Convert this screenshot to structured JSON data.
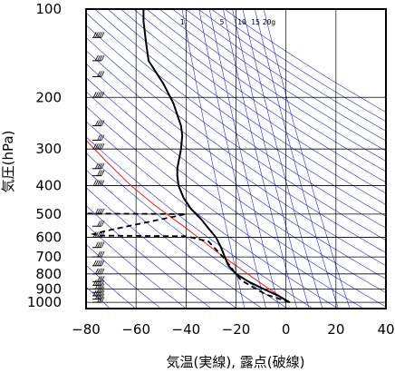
{
  "chart_data": {
    "type": "line",
    "subtype": "emagram",
    "xlabel": "気温(実線), 露点(破線)",
    "ylabel": "気圧(hPa)",
    "xlim": [
      -80,
      40
    ],
    "ylim": [
      1050,
      100
    ],
    "y_scale": "log",
    "x_ticks": [
      -80,
      -60,
      -40,
      -20,
      0,
      20,
      40
    ],
    "x_tick_labels": [
      "−80",
      "−60",
      "−40",
      "−20",
      "0",
      "20",
      "40"
    ],
    "y_ticks": [
      100,
      200,
      300,
      400,
      500,
      600,
      700,
      800,
      900,
      1000
    ],
    "y_tick_labels": [
      "100",
      "200",
      "300",
      "400",
      "500",
      "600",
      "700",
      "800",
      "900",
      "1000"
    ],
    "grid": true,
    "mixing_ratio_labels": [
      "1",
      "5",
      "10",
      "15",
      "20g"
    ],
    "series": [
      {
        "style": "solid",
        "color": "#000000",
        "points": [
          [
            1.5,
            1000
          ],
          [
            -3,
            950
          ],
          [
            -9,
            900
          ],
          [
            -15,
            850
          ],
          [
            -20,
            800
          ],
          [
            -23,
            750
          ],
          [
            -24.5,
            700
          ],
          [
            -26,
            650
          ],
          [
            -28,
            600
          ],
          [
            -31,
            560
          ],
          [
            -34,
            520
          ],
          [
            -38,
            480
          ],
          [
            -41,
            440
          ],
          [
            -43,
            400
          ],
          [
            -43.5,
            370
          ],
          [
            -43.5,
            350
          ],
          [
            -42,
            300
          ],
          [
            -41.5,
            270
          ],
          [
            -42,
            250
          ],
          [
            -45,
            210
          ],
          [
            -49,
            180
          ],
          [
            -55,
            150
          ],
          [
            -56,
            130
          ],
          [
            -57,
            110
          ],
          [
            -57,
            100
          ]
        ]
      },
      {
        "style": "dashed",
        "color": "#000000",
        "points": [
          [
            1.5,
            1000
          ],
          [
            -3,
            970
          ],
          [
            -8,
            940
          ],
          [
            -12,
            900
          ],
          [
            -15,
            870
          ],
          [
            -18,
            840
          ],
          [
            -20,
            800
          ],
          [
            -24,
            720
          ],
          [
            -28,
            660
          ],
          [
            -31,
            620
          ],
          [
            -40,
            595
          ],
          [
            -75,
            592
          ],
          [
            -77,
            585
          ],
          [
            -72,
            570
          ],
          [
            -40,
            500
          ],
          [
            -80,
            498
          ]
        ]
      }
    ],
    "parcel_curve": {
      "color": "#e8201a",
      "points": [
        [
          1.5,
          1000
        ],
        [
          -5,
          920
        ],
        [
          -11,
          850
        ],
        [
          -18,
          770
        ],
        [
          -25,
          700
        ],
        [
          -33,
          620
        ],
        [
          -41,
          550
        ],
        [
          -52,
          470
        ],
        [
          -62,
          400
        ],
        [
          -72,
          330
        ],
        [
          -80,
          280
        ]
      ]
    },
    "wind_barb_levels": [
      1000,
      975,
      950,
      925,
      900,
      875,
      850,
      800,
      750,
      700,
      650,
      600,
      550,
      500,
      400,
      370,
      350,
      300,
      280,
      250,
      200,
      170,
      150,
      125
    ],
    "colors": {
      "isotherm_lines": "#2424d8",
      "temperature": "#000000",
      "dewpoint": "#000000",
      "parcel": "#e8201a",
      "grid": "#000000"
    }
  }
}
